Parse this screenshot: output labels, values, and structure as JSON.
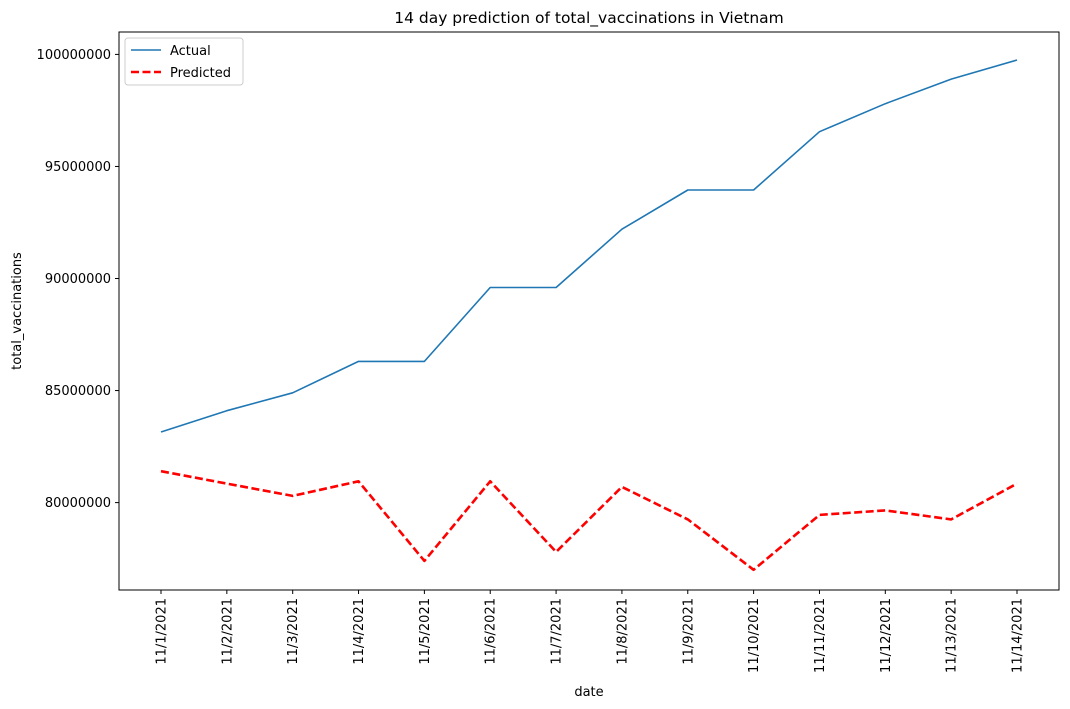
{
  "chart_data": {
    "type": "line",
    "title": "14 day prediction of total_vaccinations in Vietnam",
    "xlabel": "date",
    "ylabel": "total_vaccinations",
    "categories": [
      "11/1/2021",
      "11/2/2021",
      "11/3/2021",
      "11/4/2021",
      "11/5/2021",
      "11/6/2021",
      "11/7/2021",
      "11/8/2021",
      "11/9/2021",
      "11/10/2021",
      "11/11/2021",
      "11/12/2021",
      "11/13/2021",
      "11/14/2021"
    ],
    "ylim": [
      76100000,
      101000000
    ],
    "yticks": [
      80000000,
      85000000,
      90000000,
      95000000,
      100000000
    ],
    "ytick_labels": [
      "80000000",
      "85000000",
      "90000000",
      "95000000",
      "100000000"
    ],
    "grid": false,
    "legend_position": "top-left",
    "series": [
      {
        "name": "Actual",
        "color": "#1f77b4",
        "style": "solid",
        "values": [
          83150000,
          84100000,
          84900000,
          86300000,
          86300000,
          89600000,
          89600000,
          92200000,
          93950000,
          93950000,
          96550000,
          97800000,
          98900000,
          99750000
        ]
      },
      {
        "name": "Predicted",
        "color": "#ff0000",
        "style": "dashed",
        "values": [
          81400000,
          80850000,
          80300000,
          80950000,
          77400000,
          80950000,
          77800000,
          80700000,
          79250000,
          77000000,
          79450000,
          79650000,
          79250000,
          80850000
        ]
      }
    ]
  }
}
